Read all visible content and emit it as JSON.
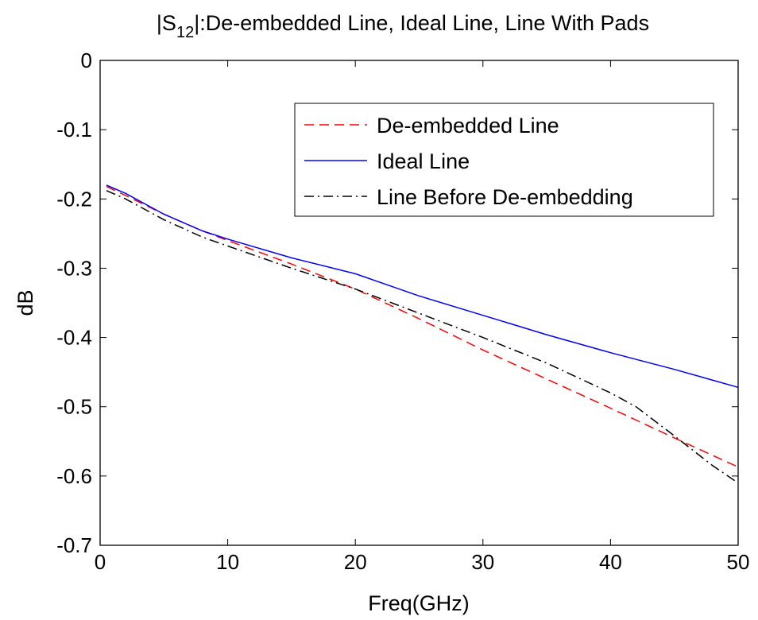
{
  "chart_data": {
    "type": "line",
    "title": {
      "prefix": "|S",
      "subscript": "12",
      "suffix": "|:De-embedded Line, Ideal Line, Line With Pads"
    },
    "xlabel": "Freq(GHz)",
    "ylabel": "dB",
    "xlim": [
      0,
      50
    ],
    "ylim": [
      -0.7,
      0
    ],
    "x_ticks": [
      0,
      10,
      20,
      30,
      40,
      50
    ],
    "x_tick_labels": [
      "0",
      "10",
      "20",
      "30",
      "40",
      "50"
    ],
    "y_ticks": [
      0,
      -0.1,
      -0.2,
      -0.3,
      -0.4,
      -0.5,
      -0.6,
      -0.7
    ],
    "y_tick_labels": [
      "0",
      "-0.1",
      "-0.2",
      "-0.3",
      "-0.4",
      "-0.5",
      "-0.6",
      "-0.7"
    ],
    "grid": false,
    "legend_position": "top-right",
    "series": [
      {
        "name": "De-embedded Line",
        "color": "#ff0000",
        "style": "dashed",
        "x": [
          0.5,
          2,
          5,
          8,
          10,
          15,
          20,
          25,
          30,
          35,
          40,
          45,
          50
        ],
        "y": [
          -0.182,
          -0.195,
          -0.222,
          -0.246,
          -0.26,
          -0.294,
          -0.33,
          -0.373,
          -0.418,
          -0.46,
          -0.502,
          -0.545,
          -0.587
        ]
      },
      {
        "name": "Ideal Line",
        "color": "#0000ff",
        "style": "solid",
        "x": [
          0.5,
          2,
          5,
          8,
          10,
          15,
          20,
          25,
          30,
          35,
          40,
          45,
          50
        ],
        "y": [
          -0.18,
          -0.192,
          -0.222,
          -0.246,
          -0.258,
          -0.285,
          -0.308,
          -0.34,
          -0.368,
          -0.396,
          -0.422,
          -0.446,
          -0.472
        ]
      },
      {
        "name": "Line Before De-embedding",
        "color": "#000000",
        "style": "dashdot",
        "x": [
          0.5,
          2,
          5,
          8,
          10,
          15,
          20,
          25,
          30,
          35,
          40,
          42,
          45,
          48,
          50
        ],
        "y": [
          -0.188,
          -0.2,
          -0.23,
          -0.255,
          -0.268,
          -0.3,
          -0.33,
          -0.365,
          -0.4,
          -0.437,
          -0.48,
          -0.5,
          -0.542,
          -0.585,
          -0.61
        ]
      }
    ]
  }
}
